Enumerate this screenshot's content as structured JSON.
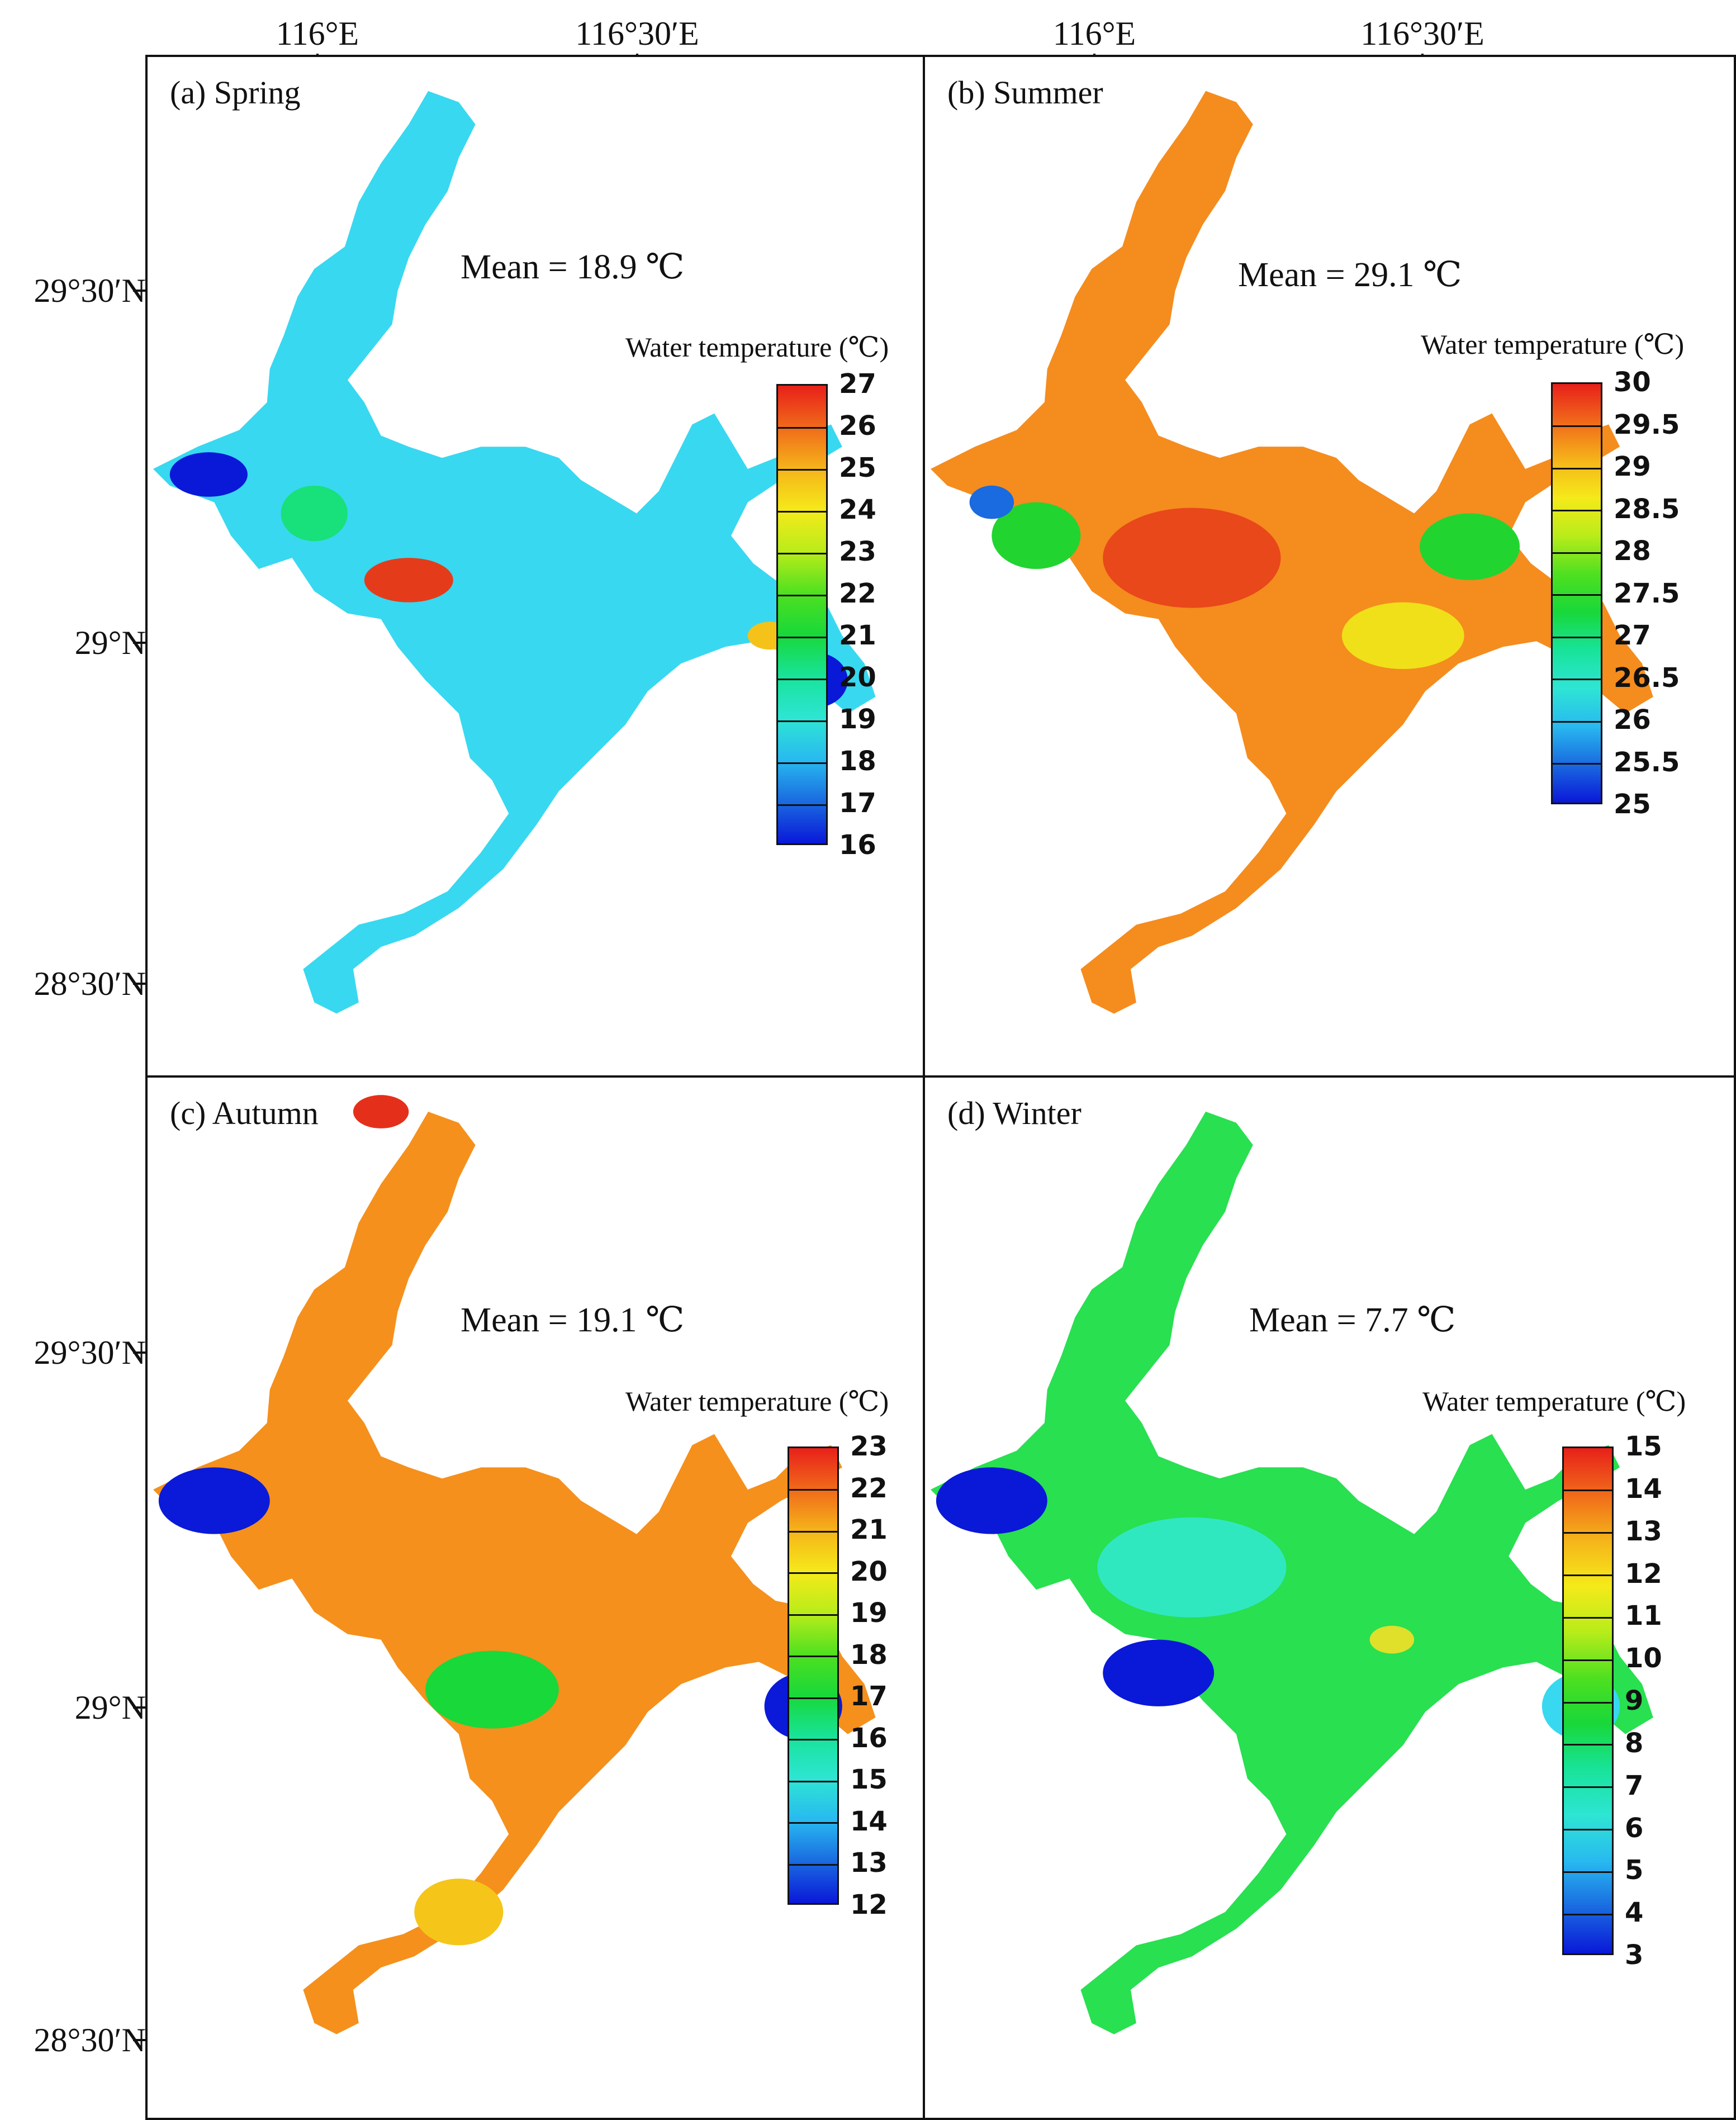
{
  "axes": {
    "lon_labels": [
      "116°E",
      "116°30′E"
    ],
    "lat_labels": [
      "29°30′N",
      "29°N",
      "28°30′N"
    ]
  },
  "panels": [
    {
      "id": "spring",
      "title": "(a) Spring",
      "mean": "Mean = 18.9 ℃",
      "legend_title": "Water temperature (℃)",
      "legend_values": [
        "27",
        "26",
        "25",
        "24",
        "23",
        "22",
        "21",
        "20",
        "19",
        "18",
        "17",
        "16"
      ],
      "dominant_color": "#38d8f0",
      "lake_colors": [
        "#38d8f0",
        "#18e07a",
        "#0a18d8",
        "#e43c1a",
        "#f5c21a"
      ]
    },
    {
      "id": "summer",
      "title": "(b) Summer",
      "mean": "Mean = 29.1 ℃",
      "legend_title": "Water temperature (℃)",
      "legend_values": [
        "30",
        "29.5",
        "29",
        "28.5",
        "28",
        "27.5",
        "27",
        "26.5",
        "26",
        "25.5",
        "25"
      ],
      "dominant_color": "#f58c1e",
      "lake_colors": [
        "#f58c1e",
        "#f0e01a",
        "#22d430",
        "#e8481a",
        "#1a6ae0"
      ]
    },
    {
      "id": "autumn",
      "title": "(c) Autumn",
      "mean": "Mean = 19.1 ℃",
      "legend_title": "Water temperature (℃)",
      "legend_values": [
        "23",
        "22",
        "21",
        "20",
        "19",
        "18",
        "17",
        "16",
        "15",
        "14",
        "13",
        "12"
      ],
      "dominant_color": "#f5901c",
      "lake_colors": [
        "#f5901c",
        "#f5c51a",
        "#18d83a",
        "#0a1ad8",
        "#e4301a"
      ]
    },
    {
      "id": "winter",
      "title": "(d) Winter",
      "mean": "Mean = 7.7 ℃",
      "legend_title": "Water temperature (℃)",
      "legend_values": [
        "15",
        "14",
        "13",
        "12",
        "11",
        "10",
        "9",
        "8",
        "7",
        "6",
        "5",
        "4",
        "3"
      ],
      "dominant_color": "#28e050",
      "lake_colors": [
        "#28e050",
        "#30e8c0",
        "#0a18d8",
        "#38d8f0",
        "#e0e02a"
      ]
    }
  ]
}
